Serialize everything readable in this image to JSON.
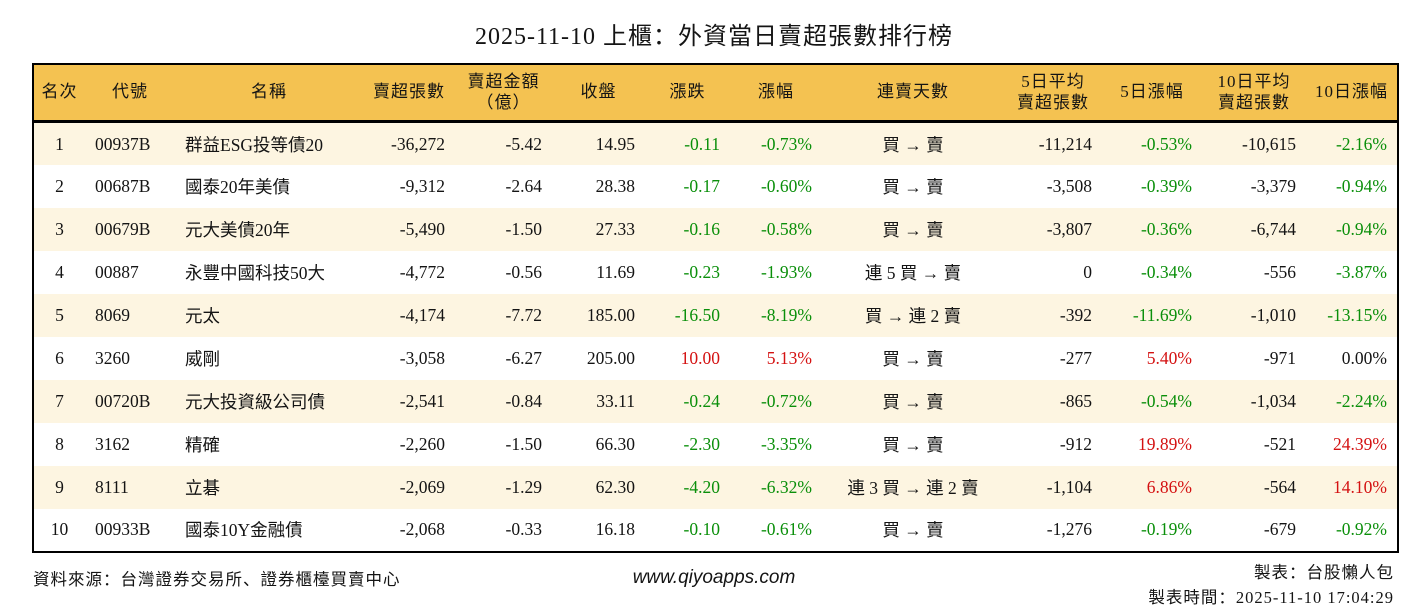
{
  "title": "2025-11-10 上櫃：外資當日賣超張數排行榜",
  "colors": {
    "header_bg": "#F4C251",
    "row_alt_bg": "#FDF5E1",
    "down_green": "#0a8f0a",
    "up_red": "#d41111",
    "border": "#000000"
  },
  "table": {
    "columns": [
      {
        "key": "rank",
        "label_lines": [
          "名次"
        ]
      },
      {
        "key": "code",
        "label_lines": [
          "代號"
        ]
      },
      {
        "key": "name",
        "label_lines": [
          "名稱"
        ]
      },
      {
        "key": "sell_shares",
        "label_lines": [
          "賣超張數"
        ]
      },
      {
        "key": "sell_amount",
        "label_lines": [
          "賣超金額",
          "（億）"
        ]
      },
      {
        "key": "close",
        "label_lines": [
          "收盤"
        ]
      },
      {
        "key": "change",
        "label_lines": [
          "漲跌"
        ]
      },
      {
        "key": "change_pct",
        "label_lines": [
          "漲幅"
        ]
      },
      {
        "key": "streak",
        "label_lines": [
          "連賣天數"
        ]
      },
      {
        "key": "avg5",
        "label_lines": [
          "5日平均",
          "賣超張數"
        ]
      },
      {
        "key": "pct5",
        "label_lines": [
          "5日漲幅"
        ]
      },
      {
        "key": "avg10",
        "label_lines": [
          "10日平均",
          "賣超張數"
        ]
      },
      {
        "key": "pct10",
        "label_lines": [
          "10日漲幅"
        ]
      }
    ],
    "rows": [
      {
        "rank": "1",
        "code": "00937B",
        "name": "群益ESG投等債20",
        "sell_shares": "-36,272",
        "sell_amount": "-5.42",
        "close": "14.95",
        "change": "-0.11",
        "change_pct": "-0.73%",
        "streak": "買 → 賣",
        "avg5": "-11,214",
        "pct5": "-0.53%",
        "avg10": "-10,615",
        "pct10": "-2.16%"
      },
      {
        "rank": "2",
        "code": "00687B",
        "name": "國泰20年美債",
        "sell_shares": "-9,312",
        "sell_amount": "-2.64",
        "close": "28.38",
        "change": "-0.17",
        "change_pct": "-0.60%",
        "streak": "買 → 賣",
        "avg5": "-3,508",
        "pct5": "-0.39%",
        "avg10": "-3,379",
        "pct10": "-0.94%"
      },
      {
        "rank": "3",
        "code": "00679B",
        "name": "元大美債20年",
        "sell_shares": "-5,490",
        "sell_amount": "-1.50",
        "close": "27.33",
        "change": "-0.16",
        "change_pct": "-0.58%",
        "streak": "買 → 賣",
        "avg5": "-3,807",
        "pct5": "-0.36%",
        "avg10": "-6,744",
        "pct10": "-0.94%"
      },
      {
        "rank": "4",
        "code": "00887",
        "name": "永豐中國科技50大",
        "sell_shares": "-4,772",
        "sell_amount": "-0.56",
        "close": "11.69",
        "change": "-0.23",
        "change_pct": "-1.93%",
        "streak": "連 5 買 → 賣",
        "avg5": "0",
        "pct5": "-0.34%",
        "avg10": "-556",
        "pct10": "-3.87%"
      },
      {
        "rank": "5",
        "code": "8069",
        "name": "元太",
        "sell_shares": "-4,174",
        "sell_amount": "-7.72",
        "close": "185.00",
        "change": "-16.50",
        "change_pct": "-8.19%",
        "streak": "買 → 連 2 賣",
        "avg5": "-392",
        "pct5": "-11.69%",
        "avg10": "-1,010",
        "pct10": "-13.15%"
      },
      {
        "rank": "6",
        "code": "3260",
        "name": "威剛",
        "sell_shares": "-3,058",
        "sell_amount": "-6.27",
        "close": "205.00",
        "change": "10.00",
        "change_pct": "5.13%",
        "streak": "買 → 賣",
        "avg5": "-277",
        "pct5": "5.40%",
        "avg10": "-971",
        "pct10": "0.00%"
      },
      {
        "rank": "7",
        "code": "00720B",
        "name": "元大投資級公司債",
        "sell_shares": "-2,541",
        "sell_amount": "-0.84",
        "close": "33.11",
        "change": "-0.24",
        "change_pct": "-0.72%",
        "streak": "買 → 賣",
        "avg5": "-865",
        "pct5": "-0.54%",
        "avg10": "-1,034",
        "pct10": "-2.24%"
      },
      {
        "rank": "8",
        "code": "3162",
        "name": "精確",
        "sell_shares": "-2,260",
        "sell_amount": "-1.50",
        "close": "66.30",
        "change": "-2.30",
        "change_pct": "-3.35%",
        "streak": "買 → 賣",
        "avg5": "-912",
        "pct5": "19.89%",
        "avg10": "-521",
        "pct10": "24.39%"
      },
      {
        "rank": "9",
        "code": "8111",
        "name": "立碁",
        "sell_shares": "-2,069",
        "sell_amount": "-1.29",
        "close": "62.30",
        "change": "-4.20",
        "change_pct": "-6.32%",
        "streak": "連 3 買 → 連 2 賣",
        "avg5": "-1,104",
        "pct5": "6.86%",
        "avg10": "-564",
        "pct10": "14.10%"
      },
      {
        "rank": "10",
        "code": "00933B",
        "name": "國泰10Y金融債",
        "sell_shares": "-2,068",
        "sell_amount": "-0.33",
        "close": "16.18",
        "change": "-0.10",
        "change_pct": "-0.61%",
        "streak": "買 → 賣",
        "avg5": "-1,276",
        "pct5": "-0.19%",
        "avg10": "-679",
        "pct10": "-0.92%"
      }
    ]
  },
  "footer": {
    "source": "資料來源：台灣證券交易所、證券櫃檯買賣中心",
    "website": "www.qiyoapps.com",
    "maker": "製表：台股懶人包",
    "generated_at": "製表時間：2025-11-10 17:04:29"
  }
}
